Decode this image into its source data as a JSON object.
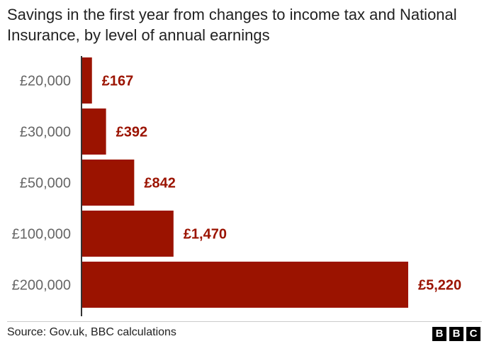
{
  "title": "Savings in the first year from changes to income tax and National Insurance, by level of annual earnings",
  "source": "Source: Gov.uk, BBC calculations",
  "logo": [
    "B",
    "B",
    "C"
  ],
  "colors": {
    "bar": "#9b1300",
    "label": "#9b1300",
    "category": "#666666",
    "axis": "#333333"
  },
  "chart_data": {
    "type": "bar",
    "orientation": "horizontal",
    "title": "Savings in the first year from changes to income tax and National Insurance, by level of annual earnings",
    "xlabel": "",
    "ylabel": "",
    "categories": [
      "£20,000",
      "£30,000",
      "£50,000",
      "£100,000",
      "£200,000"
    ],
    "values": [
      167,
      392,
      842,
      1470,
      5220
    ],
    "value_labels": [
      "£167",
      "£392",
      "£842",
      "£1,470",
      "£5,220"
    ],
    "xlim": [
      0,
      5220
    ],
    "grid": false,
    "legend": "none"
  }
}
